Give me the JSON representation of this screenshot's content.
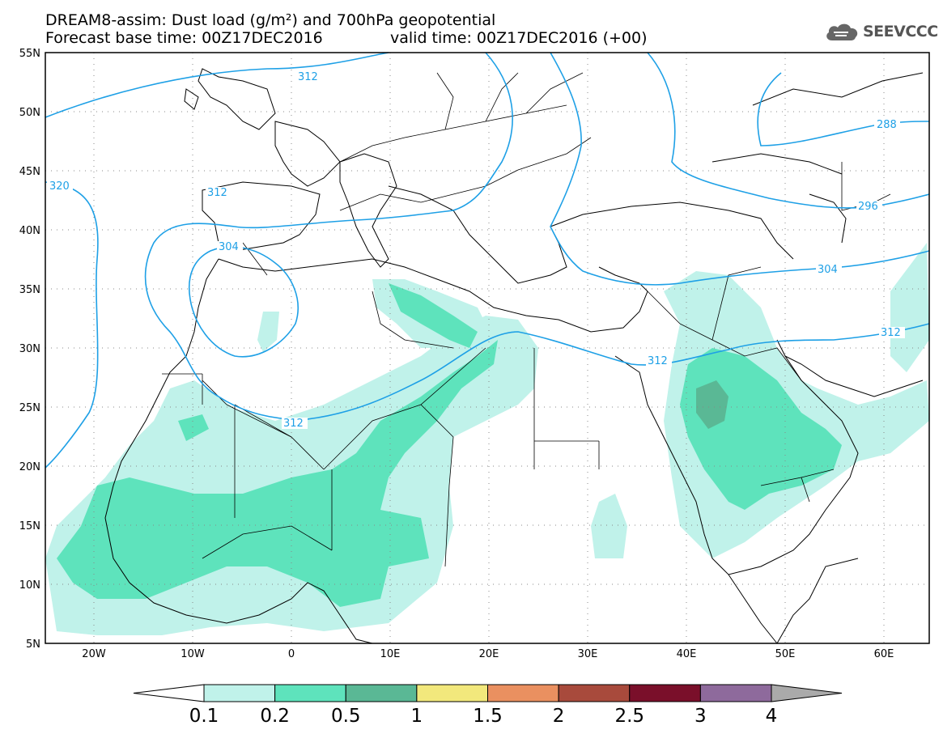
{
  "title_line1": "DREAM8-assim: Dust load (g/m²) and 700hPa geopotential",
  "title_line2": "Forecast base time: 00Z17DEC2016",
  "title_line2b": "valid time: 00Z17DEC2016 (+00)",
  "logo_text": "SEEVCCC",
  "lat_labels": [
    "55N",
    "50N",
    "45N",
    "40N",
    "35N",
    "30N",
    "25N",
    "20N",
    "15N",
    "10N",
    "5N"
  ],
  "lon_labels": [
    "20W",
    "10W",
    "0",
    "10E",
    "20E",
    "30E",
    "40E",
    "50E",
    "60E"
  ],
  "contour_labels": [
    "312",
    "288",
    "320",
    "312",
    "296",
    "304",
    "304",
    "312",
    "312",
    "312"
  ],
  "colorbar": {
    "levels": [
      "0.1",
      "0.2",
      "0.5",
      "1",
      "1.5",
      "2",
      "2.5",
      "3",
      "4"
    ],
    "colors": [
      "#ffffff",
      "#c0f2ea",
      "#5ee3bc",
      "#5ab895",
      "#f2e87c",
      "#ea9060",
      "#a84a3c",
      "#7a0f2a",
      "#8e6a9c",
      "#aaaaaa"
    ]
  },
  "colors": {
    "contour": "#1ea0e6",
    "dust_light": "#c0f2ea",
    "dust_mid": "#5ee3bc",
    "dust_dark": "#5ab895"
  }
}
